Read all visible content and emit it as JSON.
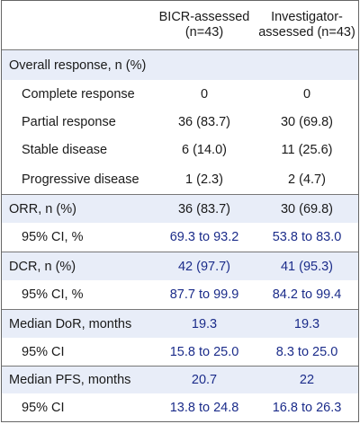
{
  "header": {
    "col1": "",
    "col2_line1": "BICR-assessed",
    "col2_line2": "(n=43)",
    "col3_line1": "Investigator-",
    "col3_line2": "assessed (n=43)"
  },
  "rows": [
    {
      "label": "Overall response, n (%)",
      "v1": "",
      "v2": ""
    },
    {
      "label": "Complete response",
      "v1": "0",
      "v2": "0"
    },
    {
      "label": "Partial response",
      "v1": "36 (83.7)",
      "v2": "30 (69.8)"
    },
    {
      "label": "Stable disease",
      "v1": "6 (14.0)",
      "v2": "11 (25.6)"
    },
    {
      "label": "Progressive disease",
      "v1": "1 (2.3)",
      "v2": "2 (4.7)"
    },
    {
      "label": "ORR, n (%)",
      "v1": "36 (83.7)",
      "v2": "30 (69.8)"
    },
    {
      "label": "95% CI, %",
      "v1": "69.3 to 93.2",
      "v2": "53.8 to 83.0"
    },
    {
      "label": "DCR, n (%)",
      "v1": "42 (97.7)",
      "v2": "41 (95.3)"
    },
    {
      "label": "95% CI, %",
      "v1": "87.7 to 99.9",
      "v2": "84.2 to 99.4"
    },
    {
      "label": "Median DoR, months",
      "v1": "19.3",
      "v2": "19.3"
    },
    {
      "label": "95% CI",
      "v1": "15.8 to 25.0",
      "v2": "8.3 to 25.0"
    },
    {
      "label": "Median PFS, months",
      "v1": "20.7",
      "v2": "22"
    },
    {
      "label": "95% CI",
      "v1": "13.8 to 24.8",
      "v2": "16.8 to 26.3"
    }
  ],
  "colors": {
    "header_bg": "#e8edf8",
    "value_text": "#1b2c8a",
    "border": "#777777"
  }
}
